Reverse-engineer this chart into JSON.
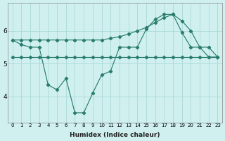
{
  "xlabel": "Humidex (Indice chaleur)",
  "x": [
    0,
    1,
    2,
    3,
    4,
    5,
    6,
    7,
    8,
    9,
    10,
    11,
    12,
    13,
    14,
    15,
    16,
    17,
    18,
    19,
    20,
    21,
    22,
    23
  ],
  "line_jagged": [
    5.72,
    5.58,
    5.5,
    5.5,
    4.35,
    4.2,
    4.55,
    3.5,
    3.5,
    4.1,
    4.65,
    4.77,
    5.5,
    5.5,
    5.5,
    6.05,
    6.35,
    6.5,
    6.5,
    5.95,
    5.5,
    5.5,
    5.5,
    5.2
  ],
  "line_smooth": [
    5.72,
    5.72,
    5.72,
    5.72,
    5.72,
    5.72,
    5.72,
    5.72,
    5.72,
    5.72,
    5.72,
    5.77,
    5.82,
    5.9,
    6.0,
    6.1,
    6.25,
    6.4,
    6.5,
    6.3,
    6.0,
    5.5,
    5.2,
    5.2
  ],
  "line_flat": [
    5.2,
    5.2,
    5.2,
    5.2,
    5.2,
    5.2,
    5.2,
    5.2,
    5.2,
    5.2,
    5.2,
    5.2,
    5.2,
    5.2,
    5.2,
    5.2,
    5.2,
    5.2,
    5.2,
    5.2,
    5.2,
    5.2,
    5.2,
    5.2
  ],
  "color": "#2a7d6e",
  "bg_color": "#d0f0f0",
  "grid_color": "#aad8d8",
  "ylim": [
    3.2,
    6.85
  ],
  "yticks": [
    4,
    5,
    6
  ],
  "xlim": [
    -0.5,
    23.5
  ]
}
